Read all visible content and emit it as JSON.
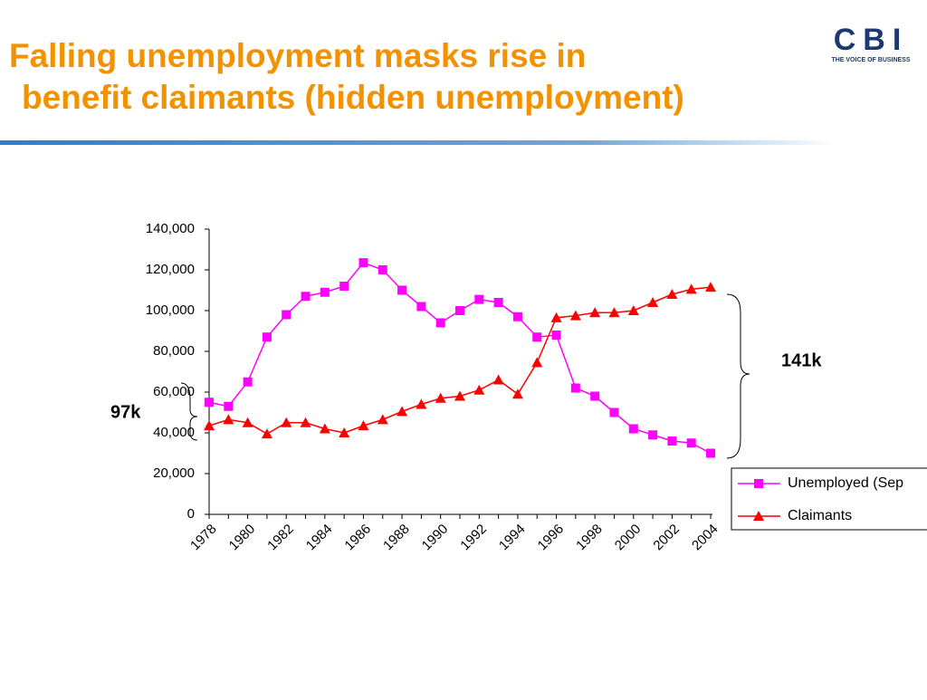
{
  "header": {
    "title_line1": "Falling unemployment masks  rise in",
    "title_line2": "benefit claimants (hidden unemployment)",
    "logo": "CBI",
    "logo_tagline": "THE VOICE OF BUSINESS"
  },
  "chart_data": {
    "type": "line",
    "categories": [
      "1978",
      null,
      "1980",
      null,
      "1982",
      null,
      "1984",
      null,
      "1986",
      null,
      "1988",
      null,
      "1990",
      null,
      "1992",
      null,
      "1994",
      null,
      "1996",
      null,
      "1998",
      null,
      "2000",
      null,
      "2002",
      null,
      "2004"
    ],
    "series": [
      {
        "name": "Unemployed (Sep",
        "color": "#ff00ff",
        "marker": "square",
        "values": [
          55000,
          53000,
          65000,
          87000,
          98000,
          107000,
          109000,
          112000,
          123500,
          120000,
          110000,
          102000,
          94000,
          100000,
          105500,
          104000,
          97000,
          87000,
          88000,
          62000,
          58000,
          50000,
          42000,
          39000,
          36000,
          35000,
          30000
        ]
      },
      {
        "name": "Claimants",
        "color": "#ff0000",
        "marker": "triangle",
        "values": [
          43500,
          46500,
          45000,
          39500,
          45000,
          45000,
          42000,
          40000,
          43500,
          46500,
          50500,
          54000,
          57000,
          58000,
          61000,
          66000,
          59000,
          74500,
          96500,
          97500,
          99000,
          99000,
          100000,
          104000,
          108000,
          110500,
          111500
        ]
      }
    ],
    "ylim": [
      0,
      140000
    ],
    "yticks": [
      0,
      {
        "value": 20000,
        "label": "20,000"
      },
      {
        "value": 40000,
        "label": "40,000"
      },
      {
        "value": 60000,
        "label": "60,000"
      },
      {
        "value": 80000,
        "label": "80,000"
      },
      {
        "value": 100000,
        "label": "100,000"
      },
      {
        "value": 120000,
        "label": "120,000"
      },
      {
        "value": 140000,
        "label": "140,000"
      }
    ],
    "annotations": [
      "97k",
      "141k"
    ],
    "legend": "right"
  }
}
